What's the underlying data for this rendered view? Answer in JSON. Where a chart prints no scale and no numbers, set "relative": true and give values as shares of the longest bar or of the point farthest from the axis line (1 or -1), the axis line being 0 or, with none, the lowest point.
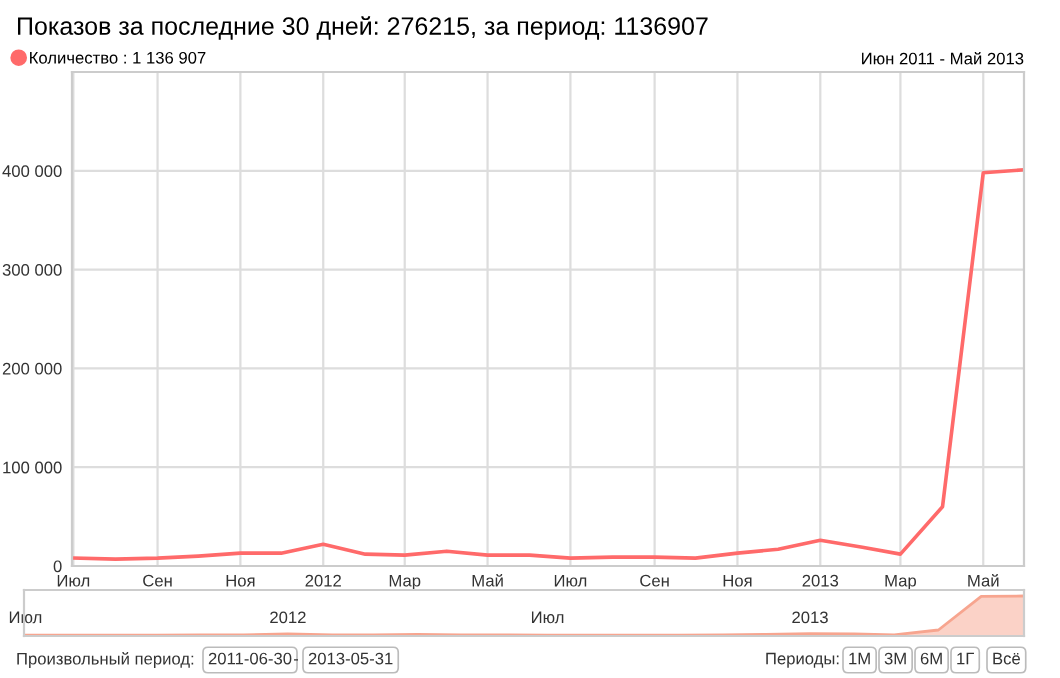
{
  "chart_data": [
    {
      "type": "line",
      "title": "Показов за последние 30 дней: 276215, за период: 1136907",
      "x": [
        "2011-07-01",
        "2011-08-01",
        "2011-09-01",
        "2011-10-01",
        "2011-11-01",
        "2011-12-01",
        "2012-01-01",
        "2012-02-01",
        "2012-03-01",
        "2012-04-01",
        "2012-05-01",
        "2012-06-01",
        "2012-07-01",
        "2012-08-01",
        "2012-09-01",
        "2012-10-01",
        "2012-11-01",
        "2012-12-01",
        "2013-01-01",
        "2013-02-01",
        "2013-03-01",
        "2013-04-01",
        "2013-05-01",
        "2013-05-31"
      ],
      "series": [
        {
          "name": "Количество : 1 136 907",
          "color": "#ff6a6a",
          "values": [
            8000,
            7000,
            8000,
            10000,
            13000,
            13000,
            22000,
            12000,
            11000,
            15000,
            11000,
            11000,
            8000,
            9000,
            9000,
            8000,
            13000,
            17000,
            26000,
            19000,
            12000,
            60000,
            398000,
            401000
          ]
        }
      ],
      "xlim": [
        "2011-06-30",
        "2013-05-31"
      ],
      "xticks": [
        {
          "value": "2011-07-01",
          "label": "Июл"
        },
        {
          "value": "2011-09-01",
          "label": "Сен"
        },
        {
          "value": "2011-11-01",
          "label": "Ноя"
        },
        {
          "value": "2012-01-01",
          "label": "2012"
        },
        {
          "value": "2012-03-01",
          "label": "Мар"
        },
        {
          "value": "2012-05-01",
          "label": "Май"
        },
        {
          "value": "2012-07-01",
          "label": "Июл"
        },
        {
          "value": "2012-09-01",
          "label": "Сен"
        },
        {
          "value": "2012-11-01",
          "label": "Ноя"
        },
        {
          "value": "2013-01-01",
          "label": "2013"
        },
        {
          "value": "2013-03-01",
          "label": "Мар"
        },
        {
          "value": "2013-05-01",
          "label": "Май"
        }
      ],
      "ylim": [
        0,
        500000
      ],
      "yticks": [
        {
          "value": 0,
          "label": "0"
        },
        {
          "value": 100000,
          "label": "100 000"
        },
        {
          "value": 200000,
          "label": "200 000"
        },
        {
          "value": 300000,
          "label": "300 000"
        },
        {
          "value": 400000,
          "label": "400 000"
        }
      ],
      "grid": true,
      "legend": "top left",
      "marker": "none",
      "line_style": "solid",
      "annotations": [
        "Июн 2011 - Май 2013"
      ]
    },
    {
      "type": "area",
      "relative": true,
      "x": [
        "2011-07-01",
        "2011-08-01",
        "2011-09-01",
        "2011-10-01",
        "2011-11-01",
        "2011-12-01",
        "2012-01-01",
        "2012-02-01",
        "2012-03-01",
        "2012-04-01",
        "2012-05-01",
        "2012-06-01",
        "2012-07-01",
        "2012-08-01",
        "2012-09-01",
        "2012-10-01",
        "2012-11-01",
        "2012-12-01",
        "2013-01-01",
        "2013-02-01",
        "2013-03-01",
        "2013-04-01",
        "2013-05-01",
        "2013-05-31"
      ],
      "series": [
        {
          "color": "#f7a58f",
          "values": [
            0.02,
            0.02,
            0.02,
            0.02,
            0.03,
            0.03,
            0.05,
            0.03,
            0.03,
            0.04,
            0.03,
            0.03,
            0.02,
            0.02,
            0.02,
            0.02,
            0.03,
            0.04,
            0.06,
            0.05,
            0.03,
            0.15,
            0.99,
            1
          ]
        }
      ],
      "xlim": [
        "2011-06-30",
        "2013-05-31"
      ],
      "xticks": [
        {
          "value": "2011-07-01",
          "label": "Июл"
        },
        {
          "value": "2012-01-01",
          "label": "2012"
        },
        {
          "value": "2012-07-01",
          "label": "Июл"
        },
        {
          "value": "2013-01-01",
          "label": "2013"
        }
      ],
      "tick_labels": "x",
      "annotations": [
        "Произвольный период:",
        "2011-06-30",
        "-",
        "2013-05-31",
        "Периоды:",
        "1М",
        "3М",
        "6М",
        "1Г",
        "Всё"
      ]
    }
  ]
}
